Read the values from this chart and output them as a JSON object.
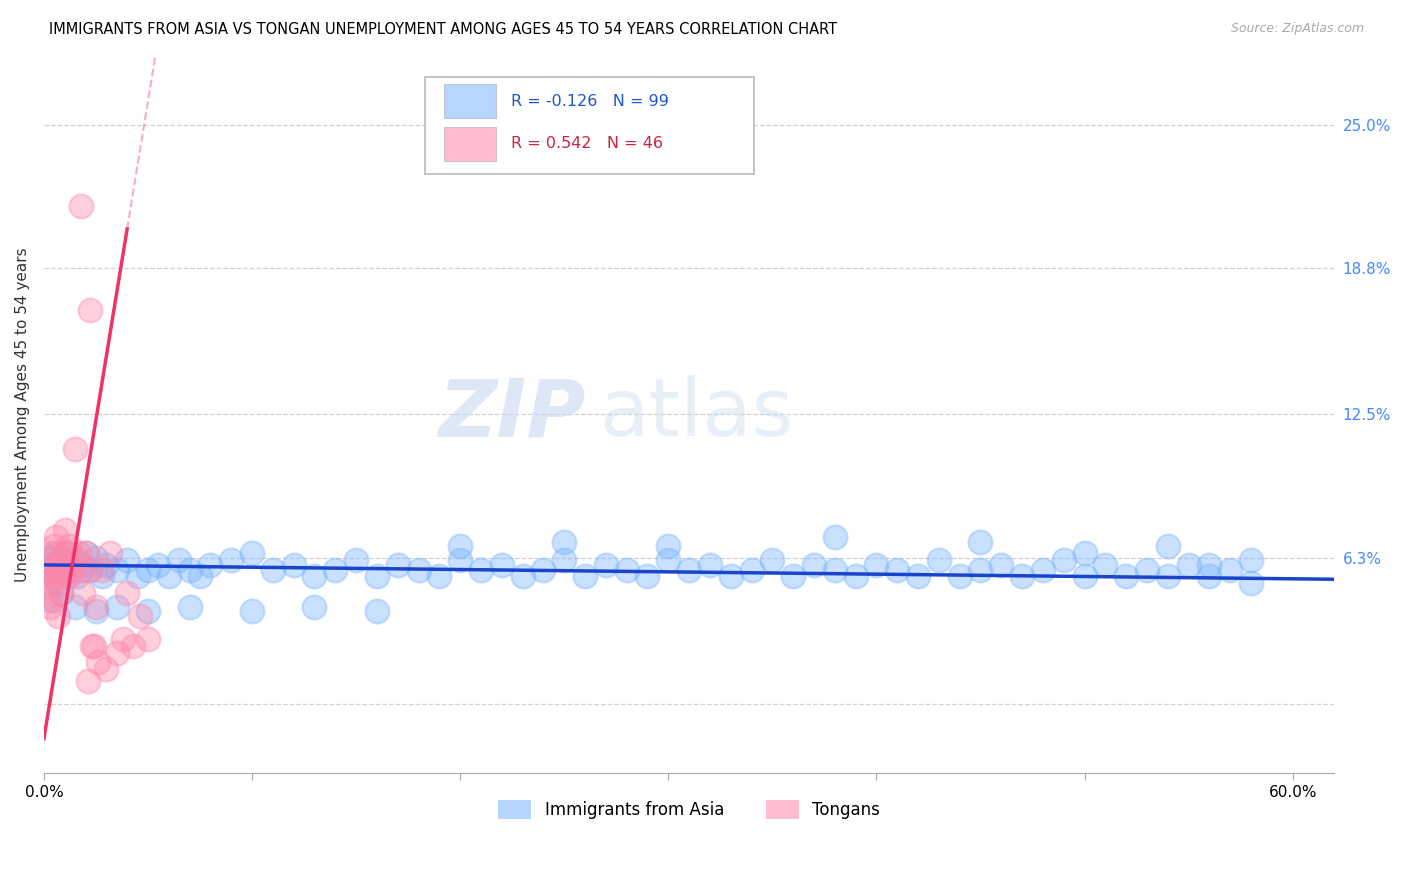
{
  "title": "IMMIGRANTS FROM ASIA VS TONGAN UNEMPLOYMENT AMONG AGES 45 TO 54 YEARS CORRELATION CHART",
  "source": "Source: ZipAtlas.com",
  "ylabel": "Unemployment Among Ages 45 to 54 years",
  "xlim": [
    0.0,
    0.62
  ],
  "ylim": [
    -0.03,
    0.28
  ],
  "background_color": "#ffffff",
  "grid_color": "#cccccc",
  "blue_color": "#7ab4ff",
  "pink_color": "#ff88aa",
  "blue_line_color": "#1a44cc",
  "pink_line_color": "#ee3366",
  "legend_blue_label": "Immigrants from Asia",
  "legend_pink_label": "Tongans",
  "R_blue": -0.126,
  "N_blue": 99,
  "R_pink": 0.542,
  "N_pink": 46,
  "watermark_left": "ZIP",
  "watermark_right": "atlas",
  "ytick_vals": [
    0.0,
    0.063,
    0.125,
    0.188,
    0.25
  ],
  "ytick_labels": [
    "",
    "6.3%",
    "12.5%",
    "18.8%",
    "25.0%"
  ],
  "xtick_vals": [
    0.0,
    0.1,
    0.2,
    0.3,
    0.4,
    0.5,
    0.6
  ],
  "xtick_labels": [
    "0.0%",
    "",
    "",
    "",
    "",
    "",
    "60.0%"
  ],
  "blue_x": [
    0.002,
    0.003,
    0.004,
    0.005,
    0.006,
    0.007,
    0.008,
    0.009,
    0.01,
    0.011,
    0.012,
    0.013,
    0.015,
    0.016,
    0.018,
    0.02,
    0.022,
    0.025,
    0.028,
    0.03,
    0.035,
    0.04,
    0.045,
    0.05,
    0.055,
    0.06,
    0.065,
    0.07,
    0.075,
    0.08,
    0.09,
    0.1,
    0.11,
    0.12,
    0.13,
    0.14,
    0.15,
    0.16,
    0.17,
    0.18,
    0.19,
    0.2,
    0.21,
    0.22,
    0.23,
    0.24,
    0.25,
    0.26,
    0.27,
    0.28,
    0.29,
    0.3,
    0.31,
    0.32,
    0.33,
    0.34,
    0.35,
    0.36,
    0.37,
    0.38,
    0.39,
    0.4,
    0.41,
    0.42,
    0.43,
    0.44,
    0.45,
    0.46,
    0.47,
    0.48,
    0.49,
    0.5,
    0.51,
    0.52,
    0.53,
    0.54,
    0.55,
    0.56,
    0.57,
    0.58,
    0.003,
    0.008,
    0.015,
    0.025,
    0.035,
    0.05,
    0.07,
    0.1,
    0.13,
    0.16,
    0.2,
    0.25,
    0.3,
    0.38,
    0.45,
    0.5,
    0.54,
    0.56,
    0.58
  ],
  "blue_y": [
    0.063,
    0.058,
    0.055,
    0.06,
    0.065,
    0.052,
    0.058,
    0.062,
    0.055,
    0.06,
    0.065,
    0.058,
    0.062,
    0.055,
    0.06,
    0.065,
    0.058,
    0.063,
    0.055,
    0.06,
    0.058,
    0.062,
    0.055,
    0.058,
    0.06,
    0.055,
    0.062,
    0.058,
    0.055,
    0.06,
    0.062,
    0.065,
    0.058,
    0.06,
    0.055,
    0.058,
    0.062,
    0.055,
    0.06,
    0.058,
    0.055,
    0.062,
    0.058,
    0.06,
    0.055,
    0.058,
    0.062,
    0.055,
    0.06,
    0.058,
    0.055,
    0.062,
    0.058,
    0.06,
    0.055,
    0.058,
    0.062,
    0.055,
    0.06,
    0.058,
    0.055,
    0.06,
    0.058,
    0.055,
    0.062,
    0.055,
    0.058,
    0.06,
    0.055,
    0.058,
    0.062,
    0.055,
    0.06,
    0.055,
    0.058,
    0.055,
    0.06,
    0.055,
    0.058,
    0.052,
    0.045,
    0.048,
    0.042,
    0.04,
    0.042,
    0.04,
    0.042,
    0.04,
    0.042,
    0.04,
    0.068,
    0.07,
    0.068,
    0.072,
    0.07,
    0.065,
    0.068,
    0.06,
    0.062
  ],
  "pink_x": [
    0.001,
    0.002,
    0.002,
    0.003,
    0.003,
    0.004,
    0.004,
    0.005,
    0.005,
    0.005,
    0.006,
    0.006,
    0.007,
    0.007,
    0.008,
    0.008,
    0.009,
    0.009,
    0.01,
    0.01,
    0.011,
    0.012,
    0.012,
    0.013,
    0.014,
    0.015,
    0.016,
    0.017,
    0.018,
    0.019,
    0.02,
    0.021,
    0.022,
    0.023,
    0.024,
    0.025,
    0.026,
    0.028,
    0.03,
    0.032,
    0.035,
    0.038,
    0.04,
    0.043,
    0.046,
    0.05
  ],
  "pink_y": [
    0.055,
    0.062,
    0.048,
    0.058,
    0.042,
    0.052,
    0.065,
    0.058,
    0.045,
    0.068,
    0.055,
    0.072,
    0.058,
    0.038,
    0.062,
    0.048,
    0.055,
    0.065,
    0.058,
    0.075,
    0.065,
    0.055,
    0.068,
    0.058,
    0.06,
    0.11,
    0.062,
    0.065,
    0.058,
    0.048,
    0.065,
    0.01,
    0.058,
    0.025,
    0.025,
    0.042,
    0.018,
    0.058,
    0.015,
    0.065,
    0.022,
    0.028,
    0.048,
    0.025,
    0.038,
    0.028
  ]
}
